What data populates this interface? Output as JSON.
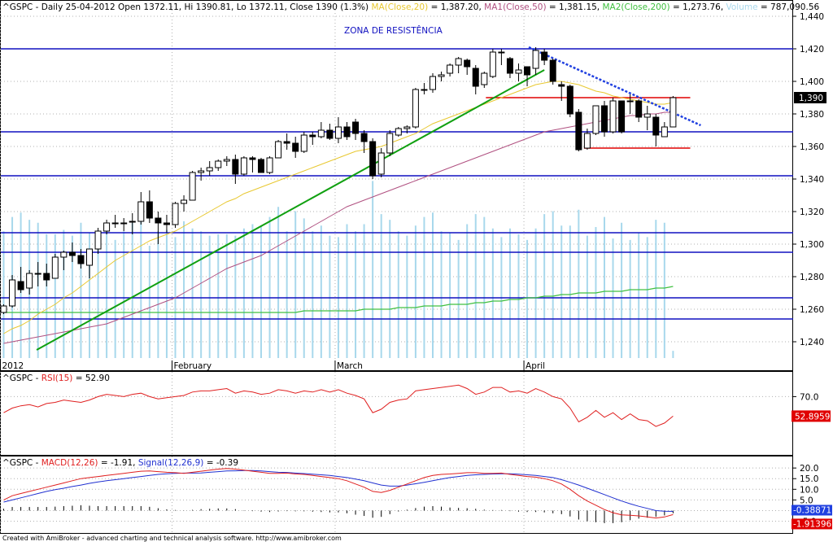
{
  "footer_text": "Created with AmiBroker - advanced charting and technical analysis software. http://www.amibroker.com",
  "colors": {
    "ma20": "#e8c830",
    "ma50": "#b05080",
    "ma200": "#40c040",
    "volume": "#a8d8ec",
    "resistance": "#1010c0",
    "trend_up": "#10a010",
    "trend_down": "#2040e0",
    "range": "#e00000",
    "rsi": "#e02020",
    "macd": "#e02020",
    "signal": "#2030d0"
  },
  "chart_data": [
    {
      "type": "candlestick",
      "header": {
        "ticker": "^GSPC",
        "info": "- Daily 25-04-2012 Open 1372.11, Hi 1390.81, Lo 1372.11, Close 1390 (1.3%)",
        "ma20": "MA(Close,20)",
        "ma20_val": "= 1,387.20,",
        "ma50": "MA1(Close,50)",
        "ma50_val": "= 1,381.15,",
        "ma200": "MA2(Close,200)",
        "ma200_val": "= 1,273.76,",
        "volume": "Volume",
        "volume_val": "= 787,090.56"
      },
      "annotation": "ZONA DE RESISTÊNCIA",
      "last_price_label": "1,390",
      "ylim": [
        1230,
        1446
      ],
      "y_ticks": [
        1240,
        1260,
        1280,
        1300,
        1320,
        1340,
        1360,
        1380,
        1400,
        1420,
        1440
      ],
      "y_tick_labels": [
        "1,240",
        "1,260",
        "1,280",
        "1,300",
        "1,320",
        "1,340",
        "1,360",
        "1,380",
        "1,400",
        "1,420",
        "1,440"
      ],
      "x_labels": [
        {
          "index": 0,
          "label": "2012"
        },
        {
          "index": 20,
          "label": "February"
        },
        {
          "index": 39,
          "label": "March"
        },
        {
          "index": 61,
          "label": "April"
        }
      ],
      "horizontal_levels": [
        1420,
        1369,
        1342,
        1307,
        1295,
        1267,
        1254
      ],
      "range_lines": [
        1390,
        1359
      ],
      "trend_up": {
        "from": [
          1,
          1235
        ],
        "to": [
          63,
          1407
        ]
      },
      "trend_down": {
        "from": [
          61,
          1421
        ],
        "to": [
          78,
          1373
        ]
      },
      "candles": [
        {
          "o": 1258,
          "h": 1263,
          "l": 1257,
          "c": 1262
        },
        {
          "o": 1262,
          "h": 1281,
          "l": 1261,
          "c": 1278
        },
        {
          "o": 1277,
          "h": 1286,
          "l": 1270,
          "c": 1272
        },
        {
          "o": 1273,
          "h": 1284,
          "l": 1269,
          "c": 1282
        },
        {
          "o": 1282,
          "h": 1289,
          "l": 1274,
          "c": 1282
        },
        {
          "o": 1282,
          "h": 1288,
          "l": 1274,
          "c": 1278
        },
        {
          "o": 1279,
          "h": 1294,
          "l": 1279,
          "c": 1292
        },
        {
          "o": 1292,
          "h": 1296,
          "l": 1284,
          "c": 1295
        },
        {
          "o": 1295,
          "h": 1301,
          "l": 1289,
          "c": 1293
        },
        {
          "o": 1293,
          "h": 1297,
          "l": 1285,
          "c": 1288
        },
        {
          "o": 1287,
          "h": 1297,
          "l": 1279,
          "c": 1297
        },
        {
          "o": 1297,
          "h": 1310,
          "l": 1294,
          "c": 1308
        },
        {
          "o": 1308,
          "h": 1315,
          "l": 1306,
          "c": 1313
        },
        {
          "o": 1313,
          "h": 1318,
          "l": 1310,
          "c": 1313
        },
        {
          "o": 1313,
          "h": 1316,
          "l": 1308,
          "c": 1313
        },
        {
          "o": 1314,
          "h": 1319,
          "l": 1306,
          "c": 1314
        },
        {
          "o": 1314,
          "h": 1332,
          "l": 1312,
          "c": 1326
        },
        {
          "o": 1326,
          "h": 1333,
          "l": 1313,
          "c": 1316
        },
        {
          "o": 1316,
          "h": 1320,
          "l": 1300,
          "c": 1313
        },
        {
          "o": 1313,
          "h": 1318,
          "l": 1307,
          "c": 1312
        },
        {
          "o": 1312,
          "h": 1326,
          "l": 1310,
          "c": 1325
        },
        {
          "o": 1325,
          "h": 1330,
          "l": 1320,
          "c": 1327
        },
        {
          "o": 1327,
          "h": 1345,
          "l": 1327,
          "c": 1344
        },
        {
          "o": 1344,
          "h": 1347,
          "l": 1339,
          "c": 1345
        },
        {
          "o": 1345,
          "h": 1351,
          "l": 1342,
          "c": 1347
        },
        {
          "o": 1347,
          "h": 1352,
          "l": 1345,
          "c": 1351
        },
        {
          "o": 1351,
          "h": 1354,
          "l": 1348,
          "c": 1352
        },
        {
          "o": 1352,
          "h": 1355,
          "l": 1337,
          "c": 1343
        },
        {
          "o": 1343,
          "h": 1354,
          "l": 1342,
          "c": 1353
        },
        {
          "o": 1353,
          "h": 1354,
          "l": 1344,
          "c": 1352
        },
        {
          "o": 1352,
          "h": 1353,
          "l": 1344,
          "c": 1344
        },
        {
          "o": 1344,
          "h": 1354,
          "l": 1343,
          "c": 1353
        },
        {
          "o": 1353,
          "h": 1364,
          "l": 1353,
          "c": 1363
        },
        {
          "o": 1363,
          "h": 1368,
          "l": 1358,
          "c": 1362
        },
        {
          "o": 1362,
          "h": 1366,
          "l": 1353,
          "c": 1357
        },
        {
          "o": 1357,
          "h": 1369,
          "l": 1356,
          "c": 1367
        },
        {
          "o": 1367,
          "h": 1369,
          "l": 1361,
          "c": 1366
        },
        {
          "o": 1366,
          "h": 1375,
          "l": 1365,
          "c": 1370
        },
        {
          "o": 1370,
          "h": 1374,
          "l": 1364,
          "c": 1365
        },
        {
          "o": 1365,
          "h": 1378,
          "l": 1362,
          "c": 1372
        },
        {
          "o": 1372,
          "h": 1375,
          "l": 1364,
          "c": 1366
        },
        {
          "o": 1375,
          "h": 1377,
          "l": 1364,
          "c": 1368
        },
        {
          "o": 1368,
          "h": 1370,
          "l": 1356,
          "c": 1363
        },
        {
          "o": 1363,
          "h": 1365,
          "l": 1340,
          "c": 1342
        },
        {
          "o": 1343,
          "h": 1359,
          "l": 1341,
          "c": 1356
        },
        {
          "o": 1356,
          "h": 1370,
          "l": 1354,
          "c": 1368
        },
        {
          "o": 1367,
          "h": 1372,
          "l": 1366,
          "c": 1371
        },
        {
          "o": 1371,
          "h": 1373,
          "l": 1368,
          "c": 1372
        },
        {
          "o": 1372,
          "h": 1396,
          "l": 1371,
          "c": 1395
        },
        {
          "o": 1395,
          "h": 1399,
          "l": 1392,
          "c": 1395
        },
        {
          "o": 1395,
          "h": 1405,
          "l": 1393,
          "c": 1403
        },
        {
          "o": 1403,
          "h": 1406,
          "l": 1400,
          "c": 1404
        },
        {
          "o": 1405,
          "h": 1411,
          "l": 1403,
          "c": 1410
        },
        {
          "o": 1410,
          "h": 1415,
          "l": 1405,
          "c": 1414
        },
        {
          "o": 1413,
          "h": 1414,
          "l": 1404,
          "c": 1409
        },
        {
          "o": 1408,
          "h": 1410,
          "l": 1392,
          "c": 1397
        },
        {
          "o": 1398,
          "h": 1406,
          "l": 1396,
          "c": 1405
        },
        {
          "o": 1403,
          "h": 1420,
          "l": 1402,
          "c": 1418
        },
        {
          "o": 1418,
          "h": 1420,
          "l": 1410,
          "c": 1418
        },
        {
          "o": 1414,
          "h": 1415,
          "l": 1402,
          "c": 1405
        },
        {
          "o": 1405,
          "h": 1411,
          "l": 1400,
          "c": 1407
        },
        {
          "o": 1409,
          "h": 1409,
          "l": 1397,
          "c": 1404
        },
        {
          "o": 1408,
          "h": 1421,
          "l": 1404,
          "c": 1419
        },
        {
          "o": 1418,
          "h": 1420,
          "l": 1410,
          "c": 1413
        },
        {
          "o": 1413,
          "h": 1414,
          "l": 1398,
          "c": 1400
        },
        {
          "o": 1398,
          "h": 1400,
          "l": 1388,
          "c": 1397
        },
        {
          "o": 1397,
          "h": 1398,
          "l": 1378,
          "c": 1380
        },
        {
          "o": 1381,
          "h": 1383,
          "l": 1357,
          "c": 1358
        },
        {
          "o": 1359,
          "h": 1371,
          "l": 1358,
          "c": 1368
        },
        {
          "o": 1368,
          "h": 1385,
          "l": 1367,
          "c": 1385
        },
        {
          "o": 1385,
          "h": 1388,
          "l": 1366,
          "c": 1369
        },
        {
          "o": 1369,
          "h": 1390,
          "l": 1368,
          "c": 1388
        },
        {
          "o": 1388,
          "h": 1388,
          "l": 1368,
          "c": 1369
        },
        {
          "o": 1388,
          "h": 1392,
          "l": 1380,
          "c": 1388
        },
        {
          "o": 1388,
          "h": 1389,
          "l": 1375,
          "c": 1378
        },
        {
          "o": 1378,
          "h": 1385,
          "l": 1370,
          "c": 1380
        },
        {
          "o": 1378,
          "h": 1380,
          "l": 1360,
          "c": 1367
        },
        {
          "o": 1366,
          "h": 1375,
          "l": 1366,
          "c": 1372
        },
        {
          "o": 1372,
          "h": 1391,
          "l": 1372,
          "c": 1390
        }
      ],
      "ma20_values": [
        1245,
        1248,
        1250,
        1253,
        1257,
        1260,
        1263,
        1267,
        1270,
        1274,
        1278,
        1282,
        1286,
        1290,
        1293,
        1296,
        1299,
        1302,
        1304,
        1306,
        1308,
        1311,
        1314,
        1317,
        1320,
        1323,
        1326,
        1328,
        1331,
        1333,
        1335,
        1337,
        1339,
        1341,
        1343,
        1345,
        1347,
        1349,
        1351,
        1353,
        1355,
        1357,
        1358,
        1359,
        1360,
        1362,
        1364,
        1366,
        1368,
        1371,
        1374,
        1376,
        1378,
        1380,
        1382,
        1384,
        1386,
        1388,
        1390,
        1392,
        1394,
        1396,
        1398,
        1399,
        1400,
        1400,
        1399,
        1398,
        1396,
        1394,
        1393,
        1391,
        1390,
        1389,
        1388,
        1387,
        1386,
        1386,
        1387
      ],
      "ma50_values": [
        1239,
        1240,
        1241,
        1242,
        1243,
        1244,
        1245,
        1246,
        1247,
        1248,
        1249,
        1250,
        1251,
        1253,
        1255,
        1257,
        1259,
        1261,
        1263,
        1265,
        1267,
        1270,
        1273,
        1276,
        1279,
        1282,
        1285,
        1287,
        1289,
        1291,
        1293,
        1296,
        1299,
        1302,
        1305,
        1308,
        1311,
        1314,
        1317,
        1320,
        1323,
        1325,
        1327,
        1329,
        1331,
        1333,
        1335,
        1337,
        1339,
        1341,
        1343,
        1345,
        1347,
        1349,
        1351,
        1353,
        1355,
        1357,
        1359,
        1361,
        1363,
        1365,
        1367,
        1369,
        1370,
        1371,
        1372,
        1373,
        1374,
        1375,
        1376,
        1377,
        1378,
        1379,
        1379,
        1380,
        1380,
        1381,
        1381
      ],
      "ma200_values": [
        1258,
        1258,
        1258,
        1258,
        1258,
        1258,
        1258,
        1258,
        1258,
        1258,
        1258,
        1258,
        1258,
        1258,
        1258,
        1258,
        1258,
        1258,
        1258,
        1258,
        1258,
        1258,
        1258,
        1258,
        1258,
        1258,
        1258,
        1258,
        1258,
        1258,
        1258,
        1258,
        1258,
        1258,
        1258,
        1259,
        1259,
        1259,
        1259,
        1259,
        1259,
        1259,
        1260,
        1260,
        1260,
        1260,
        1261,
        1261,
        1261,
        1262,
        1262,
        1262,
        1263,
        1263,
        1263,
        1264,
        1264,
        1265,
        1265,
        1266,
        1266,
        1267,
        1267,
        1268,
        1268,
        1269,
        1269,
        1270,
        1270,
        1270,
        1271,
        1271,
        1271,
        1272,
        1272,
        1272,
        1273,
        1273,
        1274
      ],
      "volume_max": 1300,
      "volume_values": [
        880,
        980,
        1010,
        960,
        940,
        860,
        860,
        890,
        850,
        940,
        870,
        860,
        930,
        820,
        880,
        940,
        990,
        780,
        880,
        890,
        840,
        950,
        900,
        880,
        850,
        860,
        860,
        850,
        900,
        930,
        920,
        980,
        1050,
        880,
        1020,
        970,
        880,
        920,
        850,
        840,
        930,
        880,
        930,
        1230,
        1000,
        960,
        880,
        850,
        920,
        980,
        1010,
        880,
        870,
        820,
        930,
        1000,
        980,
        900,
        840,
        900,
        860,
        820,
        900,
        1000,
        1020,
        920,
        920,
        1030,
        850,
        910,
        980,
        830,
        940,
        820,
        870,
        840,
        960,
        940,
        50
      ]
    },
    {
      "type": "line",
      "header": {
        "ticker": "^GSPC",
        "rsi": "RSI(15)",
        "rsi_val": "= 52.90"
      },
      "ylim": [
        20,
        88
      ],
      "y_ticks": [
        70
      ],
      "y_tick_labels": [
        "70.0"
      ],
      "last_value_label": "52.8959",
      "values": [
        56,
        60,
        62,
        63,
        61,
        64,
        65,
        67,
        66,
        65,
        67,
        70,
        72,
        71,
        70,
        72,
        73,
        70,
        68,
        69,
        70,
        71,
        74,
        75,
        75,
        76,
        77,
        73,
        75,
        74,
        72,
        73,
        76,
        75,
        73,
        75,
        74,
        76,
        74,
        76,
        73,
        71,
        68,
        56,
        59,
        65,
        67,
        68,
        75,
        76,
        77,
        78,
        79,
        80,
        77,
        72,
        74,
        78,
        78,
        74,
        75,
        73,
        77,
        74,
        70,
        68,
        60,
        48,
        52,
        58,
        52,
        56,
        50,
        55,
        50,
        49,
        44,
        47,
        53
      ]
    },
    {
      "type": "line",
      "header": {
        "ticker": "^GSPC",
        "macd": "MACD(12,26)",
        "macd_val": "= -1.91,",
        "signal": "Signal(12,26,9)",
        "signal_val": "= -0.39"
      },
      "ylim": [
        -9,
        23.5
      ],
      "y_ticks": [
        20,
        15,
        10,
        5,
        0,
        -5
      ],
      "y_tick_labels": [
        "20.0",
        "15.0",
        "10.0",
        "5.0",
        "0.0",
        "-5.0"
      ],
      "last_value_labels": [
        "-0.38871",
        "-1.91396"
      ],
      "macd_values": [
        5,
        7,
        8,
        9,
        10,
        11,
        12,
        13,
        14,
        15,
        15.5,
        16,
        16.5,
        17,
        17.5,
        18,
        18.5,
        18.6,
        18.3,
        18,
        17.8,
        17.5,
        18,
        18.5,
        19,
        19.5,
        19.8,
        19.5,
        19,
        18.5,
        18,
        17.5,
        17.5,
        17.6,
        17.2,
        17,
        16.5,
        16,
        15.5,
        15,
        14,
        12.5,
        11,
        9,
        8.5,
        9.5,
        11,
        12.5,
        14,
        15.5,
        16.5,
        17,
        17.2,
        17.5,
        17.8,
        17.8,
        17.5,
        17.5,
        17.6,
        17,
        16.5,
        16,
        15.7,
        15,
        14,
        12.5,
        10,
        7,
        4.5,
        2.5,
        0.5,
        -1,
        -2,
        -2.2,
        -2.5,
        -3,
        -3.5,
        -3,
        -1.9
      ],
      "signal_values": [
        4,
        5,
        6,
        7,
        8,
        9,
        9.8,
        10.5,
        11.3,
        12,
        12.8,
        13.5,
        14,
        14.5,
        15,
        15.5,
        16,
        16.5,
        17,
        17.3,
        17.5,
        17.6,
        17.6,
        17.7,
        18,
        18.3,
        18.6,
        18.7,
        18.8,
        18.8,
        18.6,
        18.3,
        18,
        17.9,
        17.6,
        17.4,
        17.1,
        16.8,
        16.5,
        16,
        15.5,
        14.8,
        14,
        13,
        12,
        11.5,
        11.5,
        12,
        12.6,
        13.3,
        14,
        14.8,
        15.5,
        16,
        16.5,
        16.8,
        17,
        17.2,
        17.3,
        17.3,
        17.1,
        16.8,
        16.5,
        16,
        15.5,
        14.5,
        13.3,
        12,
        10.5,
        9,
        7.5,
        6,
        4.5,
        3.2,
        2,
        1,
        0,
        -0.3,
        -0.39
      ]
    }
  ]
}
